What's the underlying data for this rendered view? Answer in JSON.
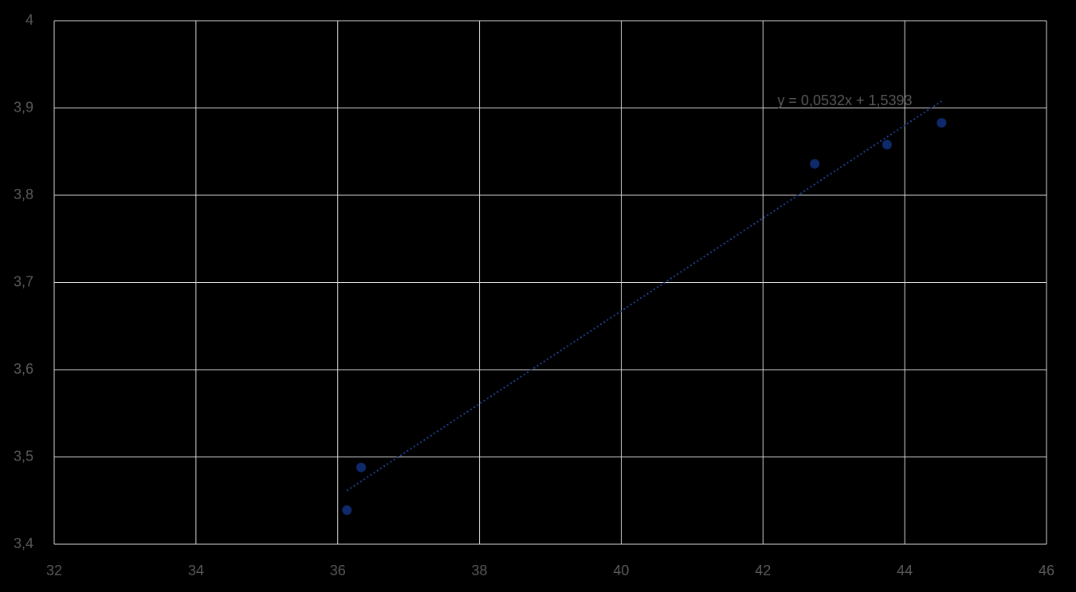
{
  "chart_data": {
    "type": "scatter",
    "x": [
      36.13,
      36.33,
      42.73,
      43.75,
      44.52
    ],
    "series": [
      {
        "color": "#0e2a6b",
        "values": [
          3.439,
          3.488,
          3.836,
          3.858,
          3.883
        ]
      }
    ],
    "trendline": {
      "label": "y = 0,0532x + 1,5393",
      "slope": 0.0532,
      "intercept": 1.5393,
      "color": "#1f3f8f"
    },
    "xlim": [
      32,
      46
    ],
    "xticks": [
      32,
      34,
      36,
      38,
      40,
      42,
      44,
      46
    ],
    "ylim": [
      3.4,
      4
    ],
    "yticks": [
      {
        "value": 3.4,
        "label": "3,4"
      },
      {
        "value": 3.5,
        "label": "3,5"
      },
      {
        "value": 3.6,
        "label": "3,6"
      },
      {
        "value": 3.7,
        "label": "3,7"
      },
      {
        "value": 3.8,
        "label": "3,8"
      },
      {
        "value": 3.9,
        "label": "3,9"
      },
      4
    ],
    "grid": true
  }
}
